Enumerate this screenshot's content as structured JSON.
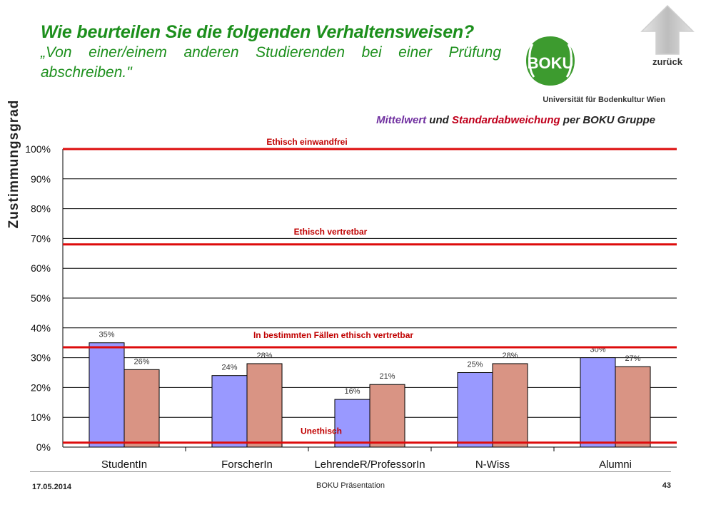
{
  "header": {
    "question": "Wie beurteilen Sie die folgenden Verhaltensweisen?",
    "statement": "„Von einer/einem anderen Studierenden bei einer Prüfung abschreiben.\"",
    "logo_text": "BOKU",
    "university": "Universität für Bodenkultur Wien",
    "back_label": "zurück"
  },
  "subtitle": {
    "part1": "Mittelwert",
    "part2": " und ",
    "part3": "Standardabweichung",
    "part4": " per BOKU Gruppe"
  },
  "colors": {
    "title": "#1c8f1c",
    "mean_bar": "#9999ff",
    "sd_bar": "#d99484",
    "ref_line": "#dd0c0c",
    "ref_label": "#c00000"
  },
  "chart_data": {
    "type": "bar",
    "title": "Mittelwert und Standardabweichung per BOKU Gruppe",
    "ylabel": "Zustimmungsgrad",
    "xlabel": "",
    "categories": [
      "StudentIn",
      "ForscherIn",
      "LehrendeR/ProfessorIn",
      "N-Wiss",
      "Alumni"
    ],
    "series": [
      {
        "values": [
          35,
          24,
          16,
          25,
          30
        ],
        "labels": [
          "35%",
          "24%",
          "16%",
          "25%",
          "30%"
        ]
      },
      {
        "values": [
          26,
          28,
          21,
          28,
          27
        ],
        "labels": [
          "26%",
          "28%",
          "21%",
          "28%",
          "27%"
        ]
      }
    ],
    "ylim": [
      0,
      100
    ],
    "yticks": [
      "0%",
      "10%",
      "20%",
      "30%",
      "40%",
      "50%",
      "60%",
      "70%",
      "80%",
      "90%",
      "100%"
    ],
    "reference_lines": [
      {
        "label": "Ethisch einwandfrei",
        "value": 100
      },
      {
        "label": "Ethisch vertretbar",
        "value": 68
      },
      {
        "label": "In bestimmten Fällen ethisch vertretbar",
        "value": 33.5
      },
      {
        "label": "Unethisch",
        "value": 1.5
      }
    ],
    "grid": true,
    "legend": "none"
  },
  "footer": {
    "date": "17.05.2014",
    "center": "BOKU Präsentation",
    "page": "43"
  }
}
